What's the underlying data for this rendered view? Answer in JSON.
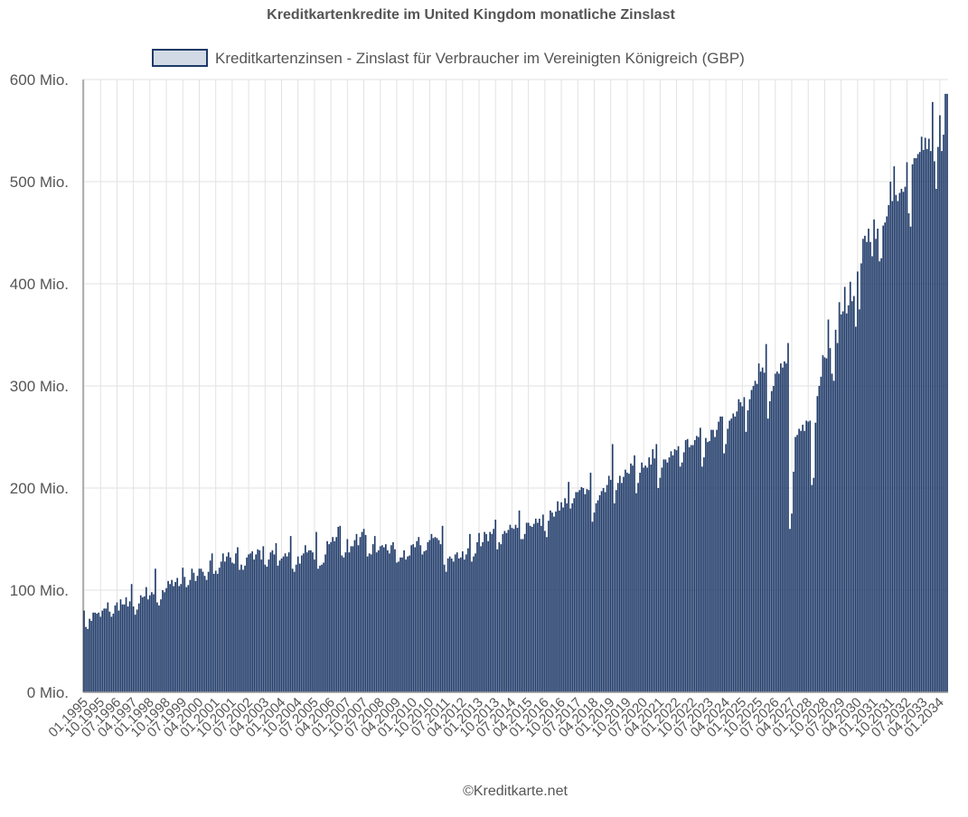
{
  "chart_data": {
    "type": "bar",
    "title": "Kreditkartenkredite im United Kingdom monatliche Zinslast",
    "footer": "©Kreditkarte.net",
    "legend_position": "top",
    "grid": true,
    "series": [
      {
        "name": "Kreditkartenzinsen - Zinslast für Verbraucher im Vereinigten Königreich (GBP)",
        "color": "#1f3a68",
        "fill": "#d2dbe5",
        "values": [
          80,
          64,
          62,
          72,
          70,
          78,
          78,
          77,
          78,
          74,
          80,
          82,
          82,
          88,
          79,
          74,
          77,
          85,
          88,
          80,
          91,
          86,
          86,
          93,
          84,
          89,
          106,
          84,
          76,
          81,
          87,
          95,
          93,
          94,
          103,
          91,
          95,
          98,
          96,
          121,
          88,
          85,
          91,
          100,
          98,
          102,
          109,
          106,
          110,
          104,
          108,
          112,
          104,
          106,
          122,
          113,
          103,
          105,
          110,
          121,
          117,
          109,
          114,
          121,
          121,
          118,
          114,
          110,
          118,
          129,
          136,
          116,
          119,
          116,
          122,
          128,
          136,
          128,
          133,
          137,
          132,
          127,
          126,
          136,
          142,
          120,
          125,
          120,
          124,
          132,
          135,
          136,
          138,
          130,
          135,
          140,
          139,
          130,
          143,
          125,
          123,
          130,
          137,
          139,
          135,
          146,
          124,
          129,
          131,
          133,
          136,
          133,
          137,
          153,
          121,
          118,
          125,
          133,
          126,
          134,
          136,
          144,
          137,
          139,
          139,
          137,
          130,
          157,
          121,
          124,
          125,
          127,
          135,
          148,
          145,
          147,
          152,
          148,
          152,
          162,
          163,
          134,
          132,
          137,
          150,
          137,
          143,
          143,
          149,
          155,
          144,
          152,
          157,
          160,
          154,
          133,
          136,
          135,
          145,
          153,
          137,
          139,
          143,
          144,
          142,
          145,
          139,
          136,
          144,
          147,
          140,
          127,
          128,
          132,
          132,
          139,
          130,
          133,
          134,
          144,
          145,
          142,
          148,
          152,
          144,
          135,
          138,
          139,
          147,
          149,
          155,
          151,
          152,
          151,
          149,
          145,
          163,
          125,
          118,
          131,
          133,
          131,
          128,
          135,
          137,
          131,
          132,
          138,
          130,
          135,
          141,
          155,
          128,
          133,
          136,
          147,
          156,
          143,
          147,
          157,
          155,
          148,
          157,
          155,
          160,
          169,
          140,
          147,
          145,
          155,
          158,
          156,
          159,
          164,
          161,
          160,
          164,
          161,
          178,
          150,
          150,
          155,
          166,
          166,
          163,
          162,
          165,
          170,
          166,
          170,
          163,
          174,
          158,
          152,
          168,
          178,
          176,
          172,
          177,
          187,
          178,
          186,
          181,
          190,
          185,
          206,
          180,
          185,
          190,
          196,
          196,
          198,
          201,
          200,
          194,
          199,
          198,
          215,
          167,
          176,
          185,
          188,
          193,
          197,
          200,
          196,
          203,
          212,
          208,
          243,
          185,
          198,
          205,
          212,
          205,
          211,
          218,
          215,
          214,
          224,
          222,
          232,
          195,
          205,
          215,
          225,
          220,
          222,
          220,
          230,
          223,
          238,
          229,
          243,
          200,
          210,
          220,
          228,
          228,
          225,
          230,
          236,
          232,
          238,
          237,
          241,
          221,
          225,
          235,
          247,
          248,
          240,
          242,
          242,
          247,
          251,
          250,
          259,
          221,
          230,
          249,
          245,
          246,
          257,
          257,
          250,
          257,
          265,
          270,
          270,
          234,
          243,
          258,
          266,
          268,
          273,
          270,
          275,
          287,
          284,
          280,
          289,
          255,
          276,
          287,
          296,
          300,
          305,
          302,
          322,
          314,
          318,
          313,
          341,
          268,
          285,
          295,
          300,
          312,
          314,
          312,
          322,
          318,
          324,
          322,
          342,
          160,
          175,
          216,
          250,
          252,
          258,
          256,
          262,
          256,
          266,
          265,
          266,
          203,
          210,
          264,
          290,
          300,
          309,
          330,
          328,
          327,
          365,
          337,
          312,
          305,
          355,
          342,
          382,
          370,
          373,
          397,
          371,
          379,
          402,
          383,
          388,
          358,
          412,
          375,
          420,
          444,
          447,
          441,
          454,
          441,
          427,
          463,
          444,
          454,
          422,
          425,
          457,
          460,
          466,
          477,
          500,
          481,
          515,
          487,
          481,
          489,
          493,
          490,
          495,
          519,
          469,
          456,
          517,
          523,
          523,
          527,
          529,
          544,
          531,
          543,
          532,
          542,
          530,
          578,
          520,
          493,
          534,
          565,
          530,
          546,
          586,
          586
        ]
      }
    ],
    "x_start": "01.1995",
    "x_label_every": 9,
    "ylim": [
      0,
      600
    ],
    "yticks": [
      0,
      100,
      200,
      300,
      400,
      500,
      600
    ],
    "ytick_suffix": " Mio."
  }
}
